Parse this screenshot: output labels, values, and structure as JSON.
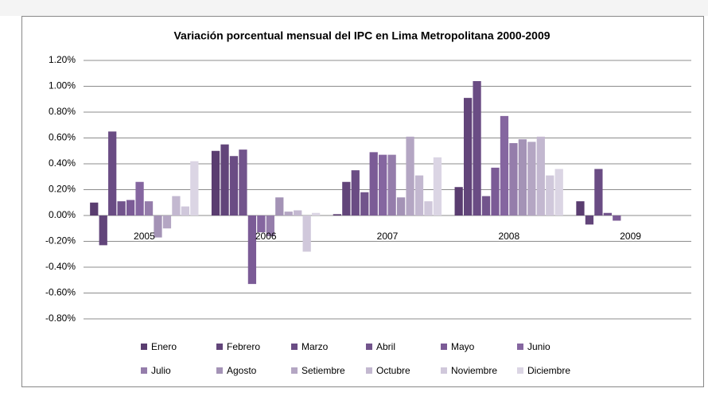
{
  "chart_data": {
    "type": "bar",
    "title": "Variación porcentual mensual del IPC en Lima Metropolitana 2000-2009",
    "categories": [
      "2005",
      "2006",
      "2007",
      "2008",
      "2009"
    ],
    "series": [
      {
        "name": "Enero",
        "color": "#5a3d70",
        "values": [
          0.1,
          0.5,
          0.01,
          0.22,
          0.11
        ]
      },
      {
        "name": "Febrero",
        "color": "#62457a",
        "values": [
          -0.23,
          0.55,
          0.26,
          0.91,
          -0.07
        ]
      },
      {
        "name": "Marzo",
        "color": "#6a4c84",
        "values": [
          0.65,
          0.46,
          0.35,
          1.04,
          0.36
        ]
      },
      {
        "name": "Abril",
        "color": "#72548c",
        "values": [
          0.11,
          0.51,
          0.18,
          0.15,
          0.02
        ]
      },
      {
        "name": "Mayo",
        "color": "#7b5b96",
        "values": [
          0.12,
          -0.53,
          0.49,
          0.37,
          -0.04
        ]
      },
      {
        "name": "Junio",
        "color": "#8566a0",
        "values": [
          0.26,
          -0.13,
          0.47,
          0.77,
          null
        ]
      },
      {
        "name": "Julio",
        "color": "#957dab",
        "values": [
          0.11,
          -0.16,
          0.47,
          0.56,
          null
        ]
      },
      {
        "name": "Agosto",
        "color": "#a493b6",
        "values": [
          -0.17,
          0.14,
          0.14,
          0.59,
          null
        ]
      },
      {
        "name": "Setiembre",
        "color": "#b4a6c3",
        "values": [
          -0.1,
          0.03,
          0.61,
          0.57,
          null
        ]
      },
      {
        "name": "Octubre",
        "color": "#c3b8d0",
        "values": [
          0.15,
          0.04,
          0.31,
          0.61,
          null
        ]
      },
      {
        "name": "Noviembre",
        "color": "#d0c8db",
        "values": [
          0.07,
          -0.28,
          0.11,
          0.31,
          null
        ]
      },
      {
        "name": "Diciembre",
        "color": "#dbd5e4",
        "values": [
          0.42,
          0.02,
          0.45,
          0.36,
          null
        ]
      }
    ],
    "ylim": [
      -0.8,
      1.2
    ],
    "yticks": [
      {
        "value": 1.2,
        "label": "1.20%"
      },
      {
        "value": 1.0,
        "label": "1.00%"
      },
      {
        "value": 0.8,
        "label": "0.80%"
      },
      {
        "value": 0.6,
        "label": "0.60%"
      },
      {
        "value": 0.4,
        "label": "0.40%"
      },
      {
        "value": 0.2,
        "label": "0.20%"
      },
      {
        "value": 0,
        "label": "0.00%"
      },
      {
        "value": -0.2,
        "label": "-0.20%"
      },
      {
        "value": -0.4,
        "label": "-0.40%"
      },
      {
        "value": -0.6,
        "label": "-0.60%"
      },
      {
        "value": -0.8,
        "label": "-0.80%"
      }
    ],
    "grid": true,
    "legend": "bottom"
  }
}
